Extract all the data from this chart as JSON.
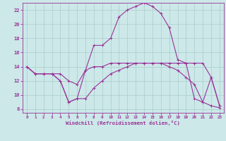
{
  "title": "",
  "xlabel": "Windchill (Refroidissement éolien,°C)",
  "xlim": [
    -0.5,
    23.5
  ],
  "ylim": [
    7.5,
    23.0
  ],
  "yticks": [
    8,
    10,
    12,
    14,
    16,
    18,
    20,
    22
  ],
  "xticks": [
    0,
    1,
    2,
    3,
    4,
    5,
    6,
    7,
    8,
    9,
    10,
    11,
    12,
    13,
    14,
    15,
    16,
    17,
    18,
    19,
    20,
    21,
    22,
    23
  ],
  "bg_color": "#cce8e8",
  "grid_color": "#aacccc",
  "line_color": "#993399",
  "series": [
    [
      14.0,
      13.0,
      13.0,
      13.0,
      13.0,
      12.0,
      11.5,
      13.5,
      14.0,
      14.0,
      14.5,
      14.5,
      14.5,
      14.5,
      14.5,
      14.5,
      14.5,
      14.5,
      14.5,
      14.5,
      9.5,
      9.0,
      8.5,
      8.2
    ],
    [
      14.0,
      13.0,
      13.0,
      13.0,
      12.0,
      9.0,
      9.5,
      9.5,
      11.0,
      12.0,
      13.0,
      13.5,
      14.0,
      14.5,
      14.5,
      14.5,
      14.5,
      14.0,
      13.5,
      12.5,
      11.5,
      9.0,
      12.5,
      8.5
    ],
    [
      14.0,
      13.0,
      13.0,
      13.0,
      12.0,
      9.0,
      9.5,
      13.5,
      17.0,
      17.0,
      18.0,
      21.0,
      22.0,
      22.5,
      23.0,
      22.5,
      21.5,
      19.5,
      15.0,
      14.5,
      14.5,
      14.5,
      12.5,
      8.5
    ]
  ]
}
